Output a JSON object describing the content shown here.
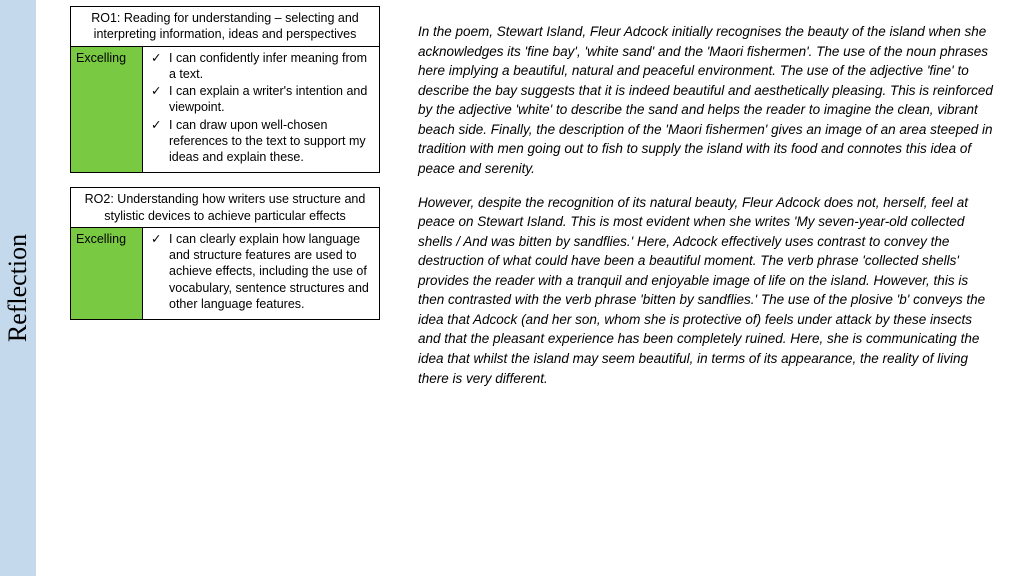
{
  "sidebar": {
    "label": "Reflection"
  },
  "rubrics": [
    {
      "header": "RO1: Reading for understanding – selecting and interpreting information, ideas and perspectives",
      "level": "Excelling",
      "items": [
        "I can confidently infer meaning from a text.",
        "I can explain a writer's intention and viewpoint.",
        "I can draw upon well-chosen references to the text to support my ideas and explain these."
      ]
    },
    {
      "header": "RO2: Understanding how writers use structure and stylistic devices to achieve particular effects",
      "level": "Excelling",
      "items": [
        "I can clearly explain how language and structure features are used to achieve effects, including the use of vocabulary, sentence structures and other language features."
      ]
    }
  ],
  "essay": {
    "p1": "In the poem, Stewart Island, Fleur Adcock initially recognises the beauty of the island when she acknowledges its 'fine bay', 'white sand' and the 'Maori fishermen'.  The use of the noun phrases here implying a beautiful, natural and peaceful environment.  The use of the adjective 'fine' to describe the bay suggests that it is indeed beautiful and aesthetically pleasing.  This is reinforced by the adjective 'white' to describe the sand and helps the reader to imagine the clean, vibrant beach side.  Finally, the description of the 'Maori fishermen' gives an image of an area steeped in tradition with men going out to fish to supply the island with its food and connotes this idea of peace and serenity.",
    "p2": "However, despite the recognition of its natural beauty, Fleur Adcock does not, herself, feel at peace on Stewart Island.  This is most evident when she writes 'My seven-year-old collected shells / And was bitten by sandflies.'  Here, Adcock effectively uses contrast to convey the destruction of what could have been a beautiful moment.  The verb phrase 'collected shells' provides the reader with a tranquil and enjoyable image of life on the island.  However, this is then contrasted with the verb phrase 'bitten by sandflies.'  The use of the plosive 'b' conveys the idea that Adcock (and her son, whom she is protective of) feels under attack by these insects and that the pleasant experience has been completely ruined.  Here, she is communicating the idea that whilst the island may seem beautiful, in terms of its appearance, the reality of living there is very different."
  },
  "colors": {
    "sidebar_bg": "#c5d9ed",
    "excelling_bg": "#7ac943"
  }
}
